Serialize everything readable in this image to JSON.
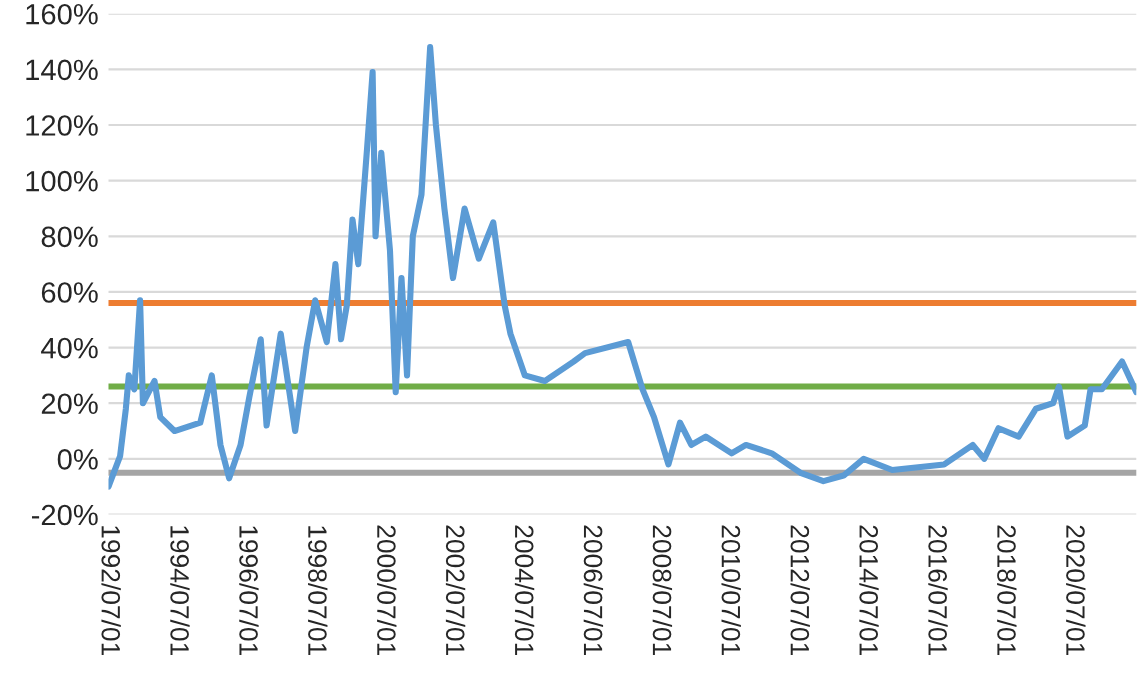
{
  "chart_data": {
    "type": "line",
    "x": [
      "1992-07",
      "1992-11",
      "1993-01",
      "1993-02",
      "1993-04",
      "1993-06",
      "1993-07",
      "1993-11",
      "1994-01",
      "1994-06",
      "1995-03",
      "1995-07",
      "1995-10",
      "1996-01",
      "1996-05",
      "1996-08",
      "1996-12",
      "1997-02",
      "1997-07",
      "1997-12",
      "1998-04",
      "1998-07",
      "1998-11",
      "1999-02",
      "1999-04",
      "1999-06",
      "1999-08",
      "1999-10",
      "2000-01",
      "2000-03",
      "2000-04",
      "2000-06",
      "2000-09",
      "2000-11",
      "2001-01",
      "2001-03",
      "2001-05",
      "2001-08",
      "2001-11",
      "2002-01",
      "2002-04",
      "2002-07",
      "2002-11",
      "2003-04",
      "2003-09",
      "2004-01",
      "2004-03",
      "2004-08",
      "2005-03",
      "2006-01",
      "2006-05",
      "2007-08",
      "2008-01",
      "2008-05",
      "2008-10",
      "2009-02",
      "2009-06",
      "2009-11",
      "2010-08",
      "2011-01",
      "2011-10",
      "2012-08",
      "2013-04",
      "2013-11",
      "2014-06",
      "2015-04",
      "2016-01",
      "2016-10",
      "2017-08",
      "2017-12",
      "2018-05",
      "2018-12",
      "2019-06",
      "2019-12",
      "2020-02",
      "2020-05",
      "2020-11",
      "2021-01",
      "2021-05",
      "2021-12",
      "2022-05"
    ],
    "series": [
      {
        "color": "#5b9bd5",
        "values": [
          -10,
          1,
          18,
          30,
          25,
          57,
          20,
          28,
          15,
          10,
          13,
          30,
          5,
          -7,
          5,
          22,
          43,
          12,
          45,
          10,
          40,
          57,
          42,
          70,
          43,
          55,
          86,
          70,
          111,
          139,
          80,
          110,
          75,
          24,
          65,
          30,
          80,
          95,
          148,
          120,
          90,
          65,
          90,
          72,
          85,
          55,
          45,
          30,
          28,
          35,
          38,
          42,
          25,
          15,
          -2,
          13,
          5,
          8,
          2,
          5,
          2,
          -5,
          -8,
          -6,
          0,
          -4,
          -3,
          -2,
          5,
          0,
          11,
          8,
          18,
          20,
          26,
          8,
          12,
          25,
          25,
          35,
          24
        ]
      }
    ],
    "xlim": [
      "1992-07-01",
      "2022-05-01"
    ],
    "xticks": [
      {
        "value": "1992-07-01",
        "label": "1992/07/01"
      },
      {
        "value": "1994-07-01",
        "label": "1994/07/01"
      },
      {
        "value": "1996-07-01",
        "label": "1996/07/01"
      },
      {
        "value": "1998-07-01",
        "label": "1998/07/01"
      },
      {
        "value": "2000-07-01",
        "label": "2000/07/01"
      },
      {
        "value": "2002-07-01",
        "label": "2002/07/01"
      },
      {
        "value": "2004-07-01",
        "label": "2004/07/01"
      },
      {
        "value": "2006-07-01",
        "label": "2006/07/01"
      },
      {
        "value": "2008-07-01",
        "label": "2008/07/01"
      },
      {
        "value": "2010-07-01",
        "label": "2010/07/01"
      },
      {
        "value": "2012-07-01",
        "label": "2012/07/01"
      },
      {
        "value": "2014-07-01",
        "label": "2014/07/01"
      },
      {
        "value": "2016-07-01",
        "label": "2016/07/01"
      },
      {
        "value": "2018-07-01",
        "label": "2018/07/01"
      },
      {
        "value": "2020-07-01",
        "label": "2020/07/01"
      }
    ],
    "ylim": [
      -20,
      160
    ],
    "yticks": [
      {
        "value": -20,
        "label": "-20%"
      },
      {
        "value": 0,
        "label": "0%"
      },
      {
        "value": 20,
        "label": "20%"
      },
      {
        "value": 40,
        "label": "40%"
      },
      {
        "value": 60,
        "label": "60%"
      },
      {
        "value": 80,
        "label": "80%"
      },
      {
        "value": 100,
        "label": "100%"
      },
      {
        "value": 120,
        "label": "120%"
      },
      {
        "value": 140,
        "label": "140%"
      },
      {
        "value": 160,
        "label": "160%"
      }
    ],
    "ref_lines": [
      {
        "axis": "y",
        "value": 56,
        "color": "#ed7d31"
      },
      {
        "axis": "y",
        "value": 26,
        "color": "#70ad47"
      },
      {
        "axis": "y",
        "value": -5,
        "color": "#a5a5a5"
      }
    ],
    "grid": "y",
    "marker": "none",
    "line_style": "solid"
  }
}
